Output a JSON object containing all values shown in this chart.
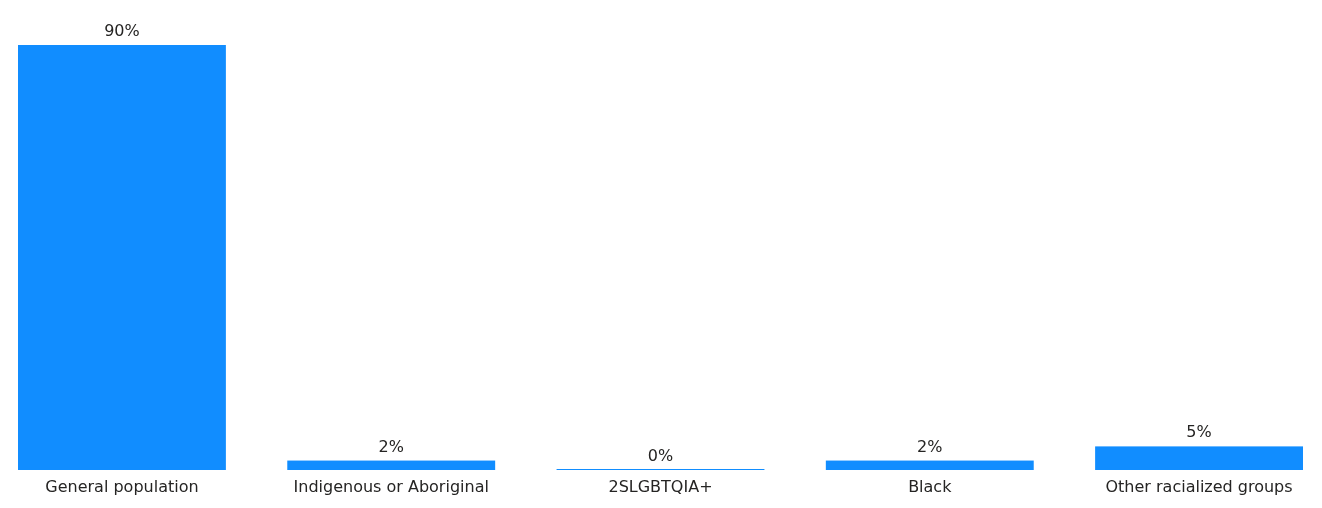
{
  "chart_data": {
    "type": "bar",
    "categories": [
      "General population",
      "Indigenous or Aboriginal",
      "2SLGBTQIA+",
      "Black",
      "Other racialized groups"
    ],
    "values": [
      90,
      2,
      0,
      2,
      5
    ],
    "value_labels": [
      "90%",
      "2%",
      "0%",
      "2%",
      "5%"
    ],
    "color": "#118dff"
  }
}
